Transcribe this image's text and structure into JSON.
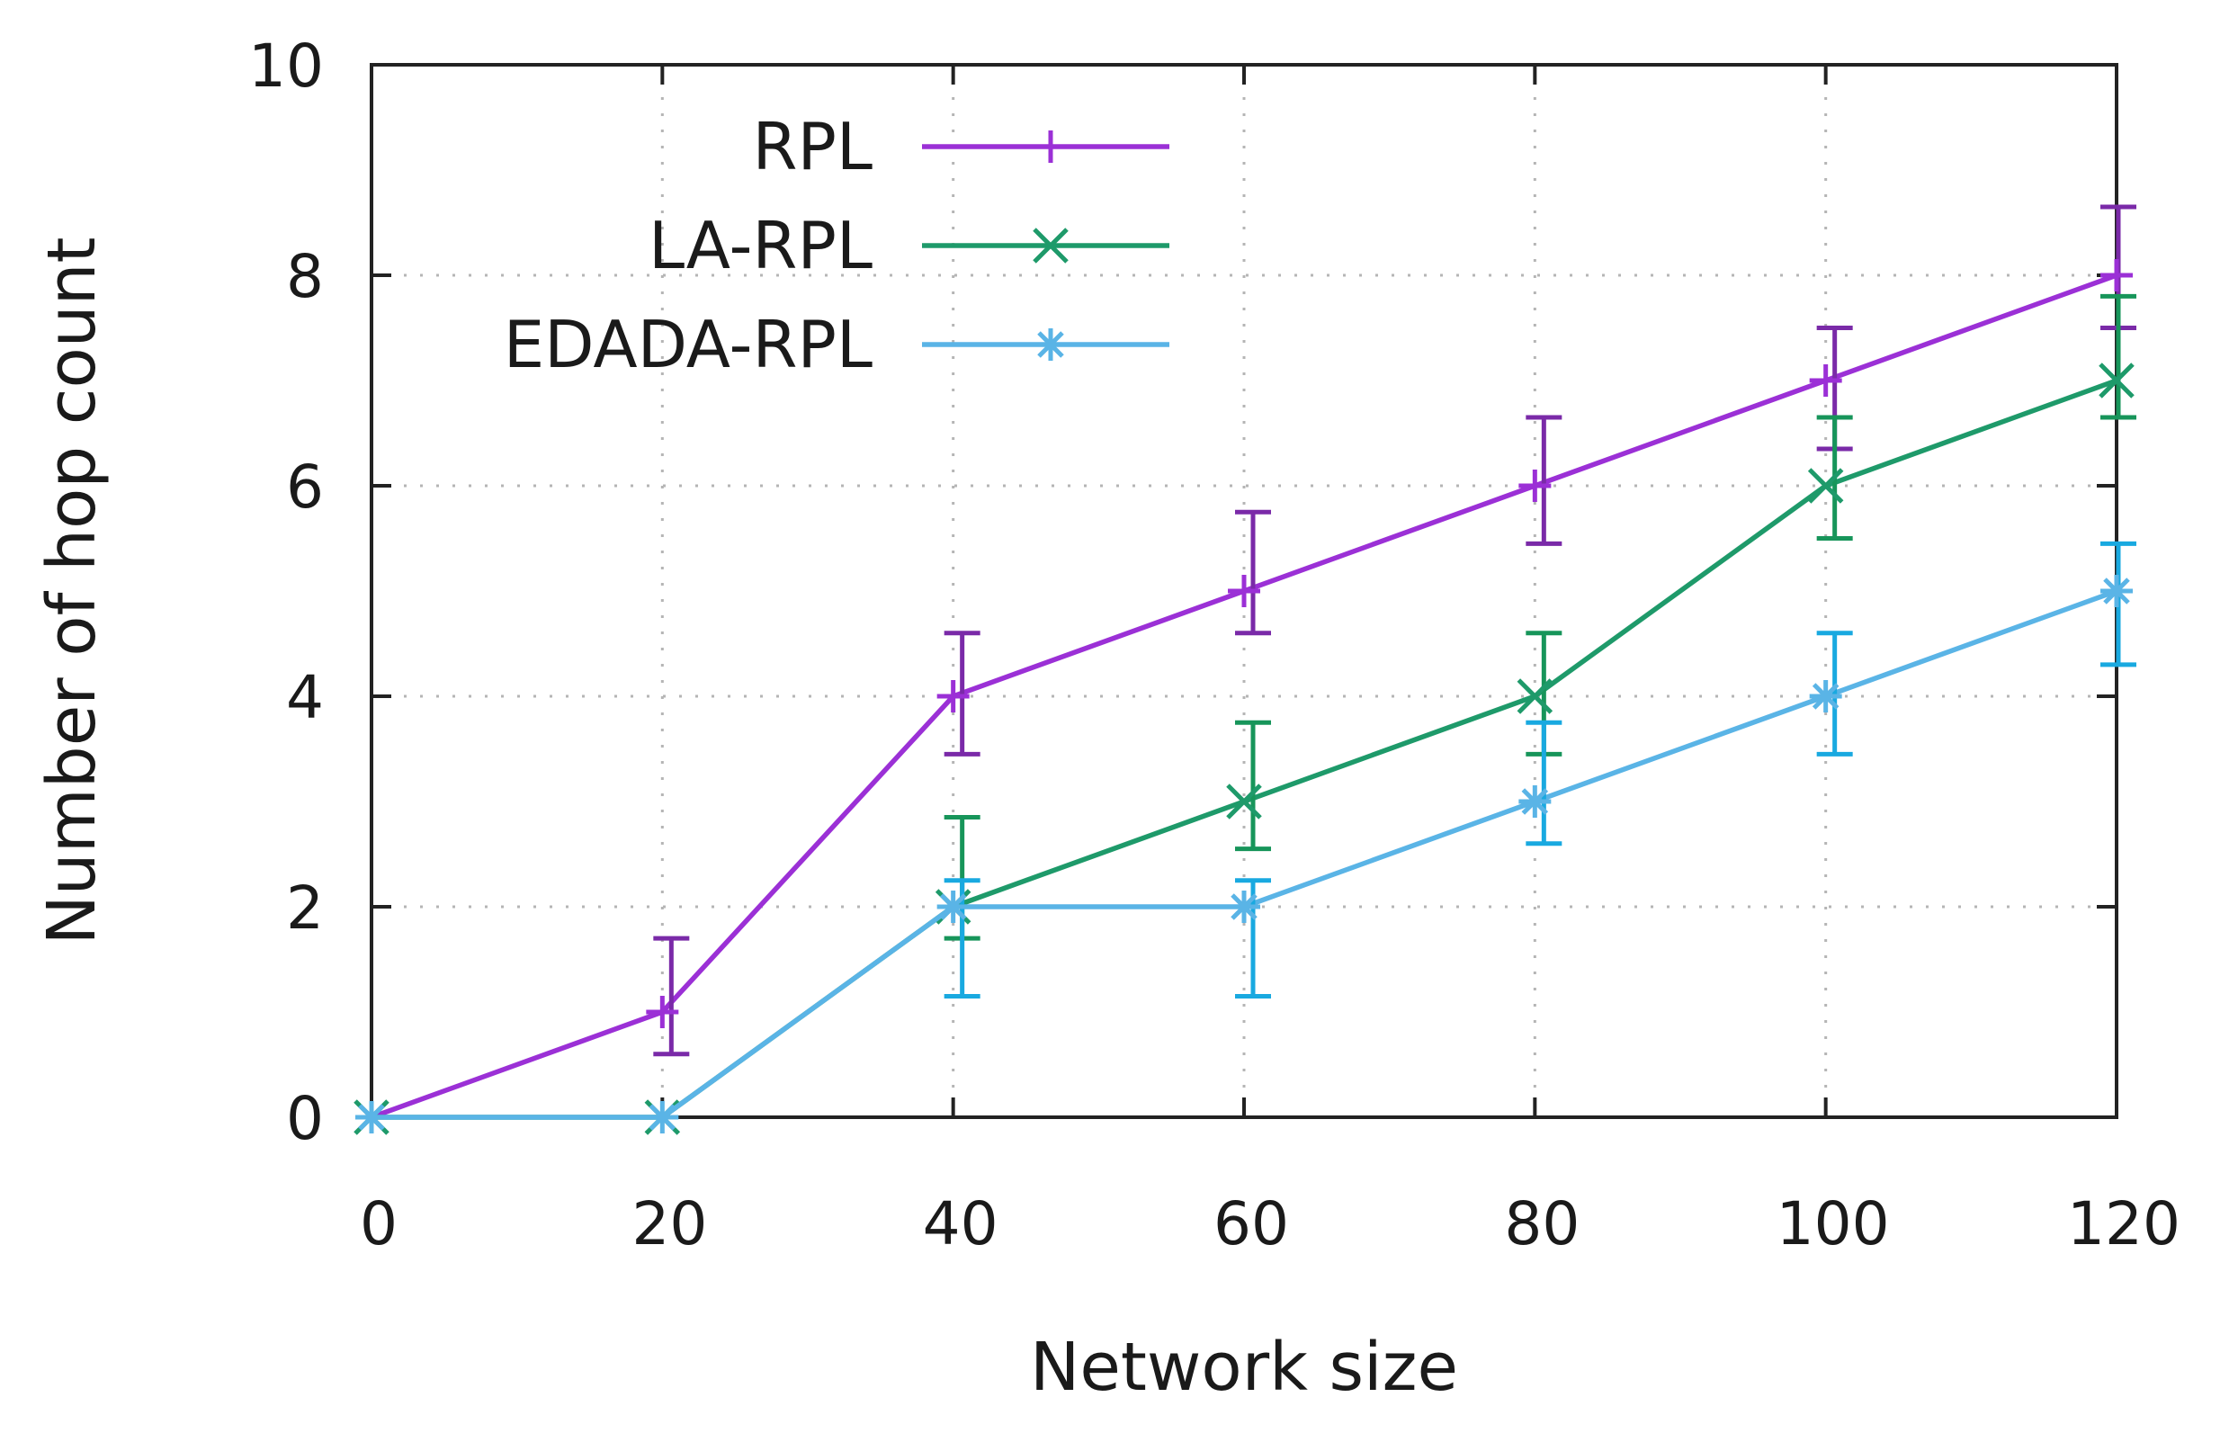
{
  "chart_data": {
    "type": "line",
    "title": "",
    "xlabel": "Network size",
    "ylabel": "Number of hop count",
    "xlim": [
      0,
      120
    ],
    "ylim": [
      0,
      10
    ],
    "xticks": [
      0,
      20,
      40,
      60,
      80,
      100,
      120
    ],
    "yticks": [
      0,
      2,
      4,
      6,
      8,
      10
    ],
    "xtick_labels": [
      "0",
      "20",
      "40",
      "60",
      "80",
      "100",
      "120"
    ],
    "ytick_labels": [
      "0",
      "2",
      "4",
      "6",
      "8",
      "10"
    ],
    "grid": true,
    "legend_position": "top-left",
    "series": [
      {
        "name": "RPL",
        "color": "#9b30d6",
        "error_color": "#7a2aa8",
        "marker": "plus",
        "x": [
          0,
          20,
          40,
          60,
          80,
          100,
          120
        ],
        "y": [
          0,
          1,
          4,
          5,
          6,
          7,
          8
        ],
        "err_low": [
          null,
          0.6,
          3.45,
          4.6,
          5.45,
          6.35,
          7.5
        ],
        "err_high": [
          null,
          1.7,
          4.6,
          5.75,
          6.65,
          7.5,
          8.65
        ]
      },
      {
        "name": "LA-RPL",
        "color": "#1e9a6a",
        "error_color": "#17955a",
        "marker": "x",
        "x": [
          0,
          20,
          40,
          60,
          80,
          100,
          120
        ],
        "y": [
          0,
          0,
          2,
          3,
          4,
          6,
          7
        ],
        "err_low": [
          null,
          null,
          1.7,
          2.55,
          3.45,
          5.5,
          6.65
        ],
        "err_high": [
          null,
          null,
          2.85,
          3.75,
          4.6,
          6.65,
          7.8
        ]
      },
      {
        "name": "EDADA-RPL",
        "color": "#5ab4e6",
        "error_color": "#19a9e0",
        "marker": "star",
        "x": [
          0,
          20,
          40,
          60,
          80,
          100,
          120
        ],
        "y": [
          0,
          0,
          2,
          2,
          3,
          4,
          5
        ],
        "err_low": [
          null,
          null,
          1.15,
          1.15,
          2.6,
          3.45,
          4.3
        ],
        "err_high": [
          null,
          null,
          2.25,
          2.25,
          3.75,
          4.6,
          5.45
        ]
      }
    ]
  }
}
